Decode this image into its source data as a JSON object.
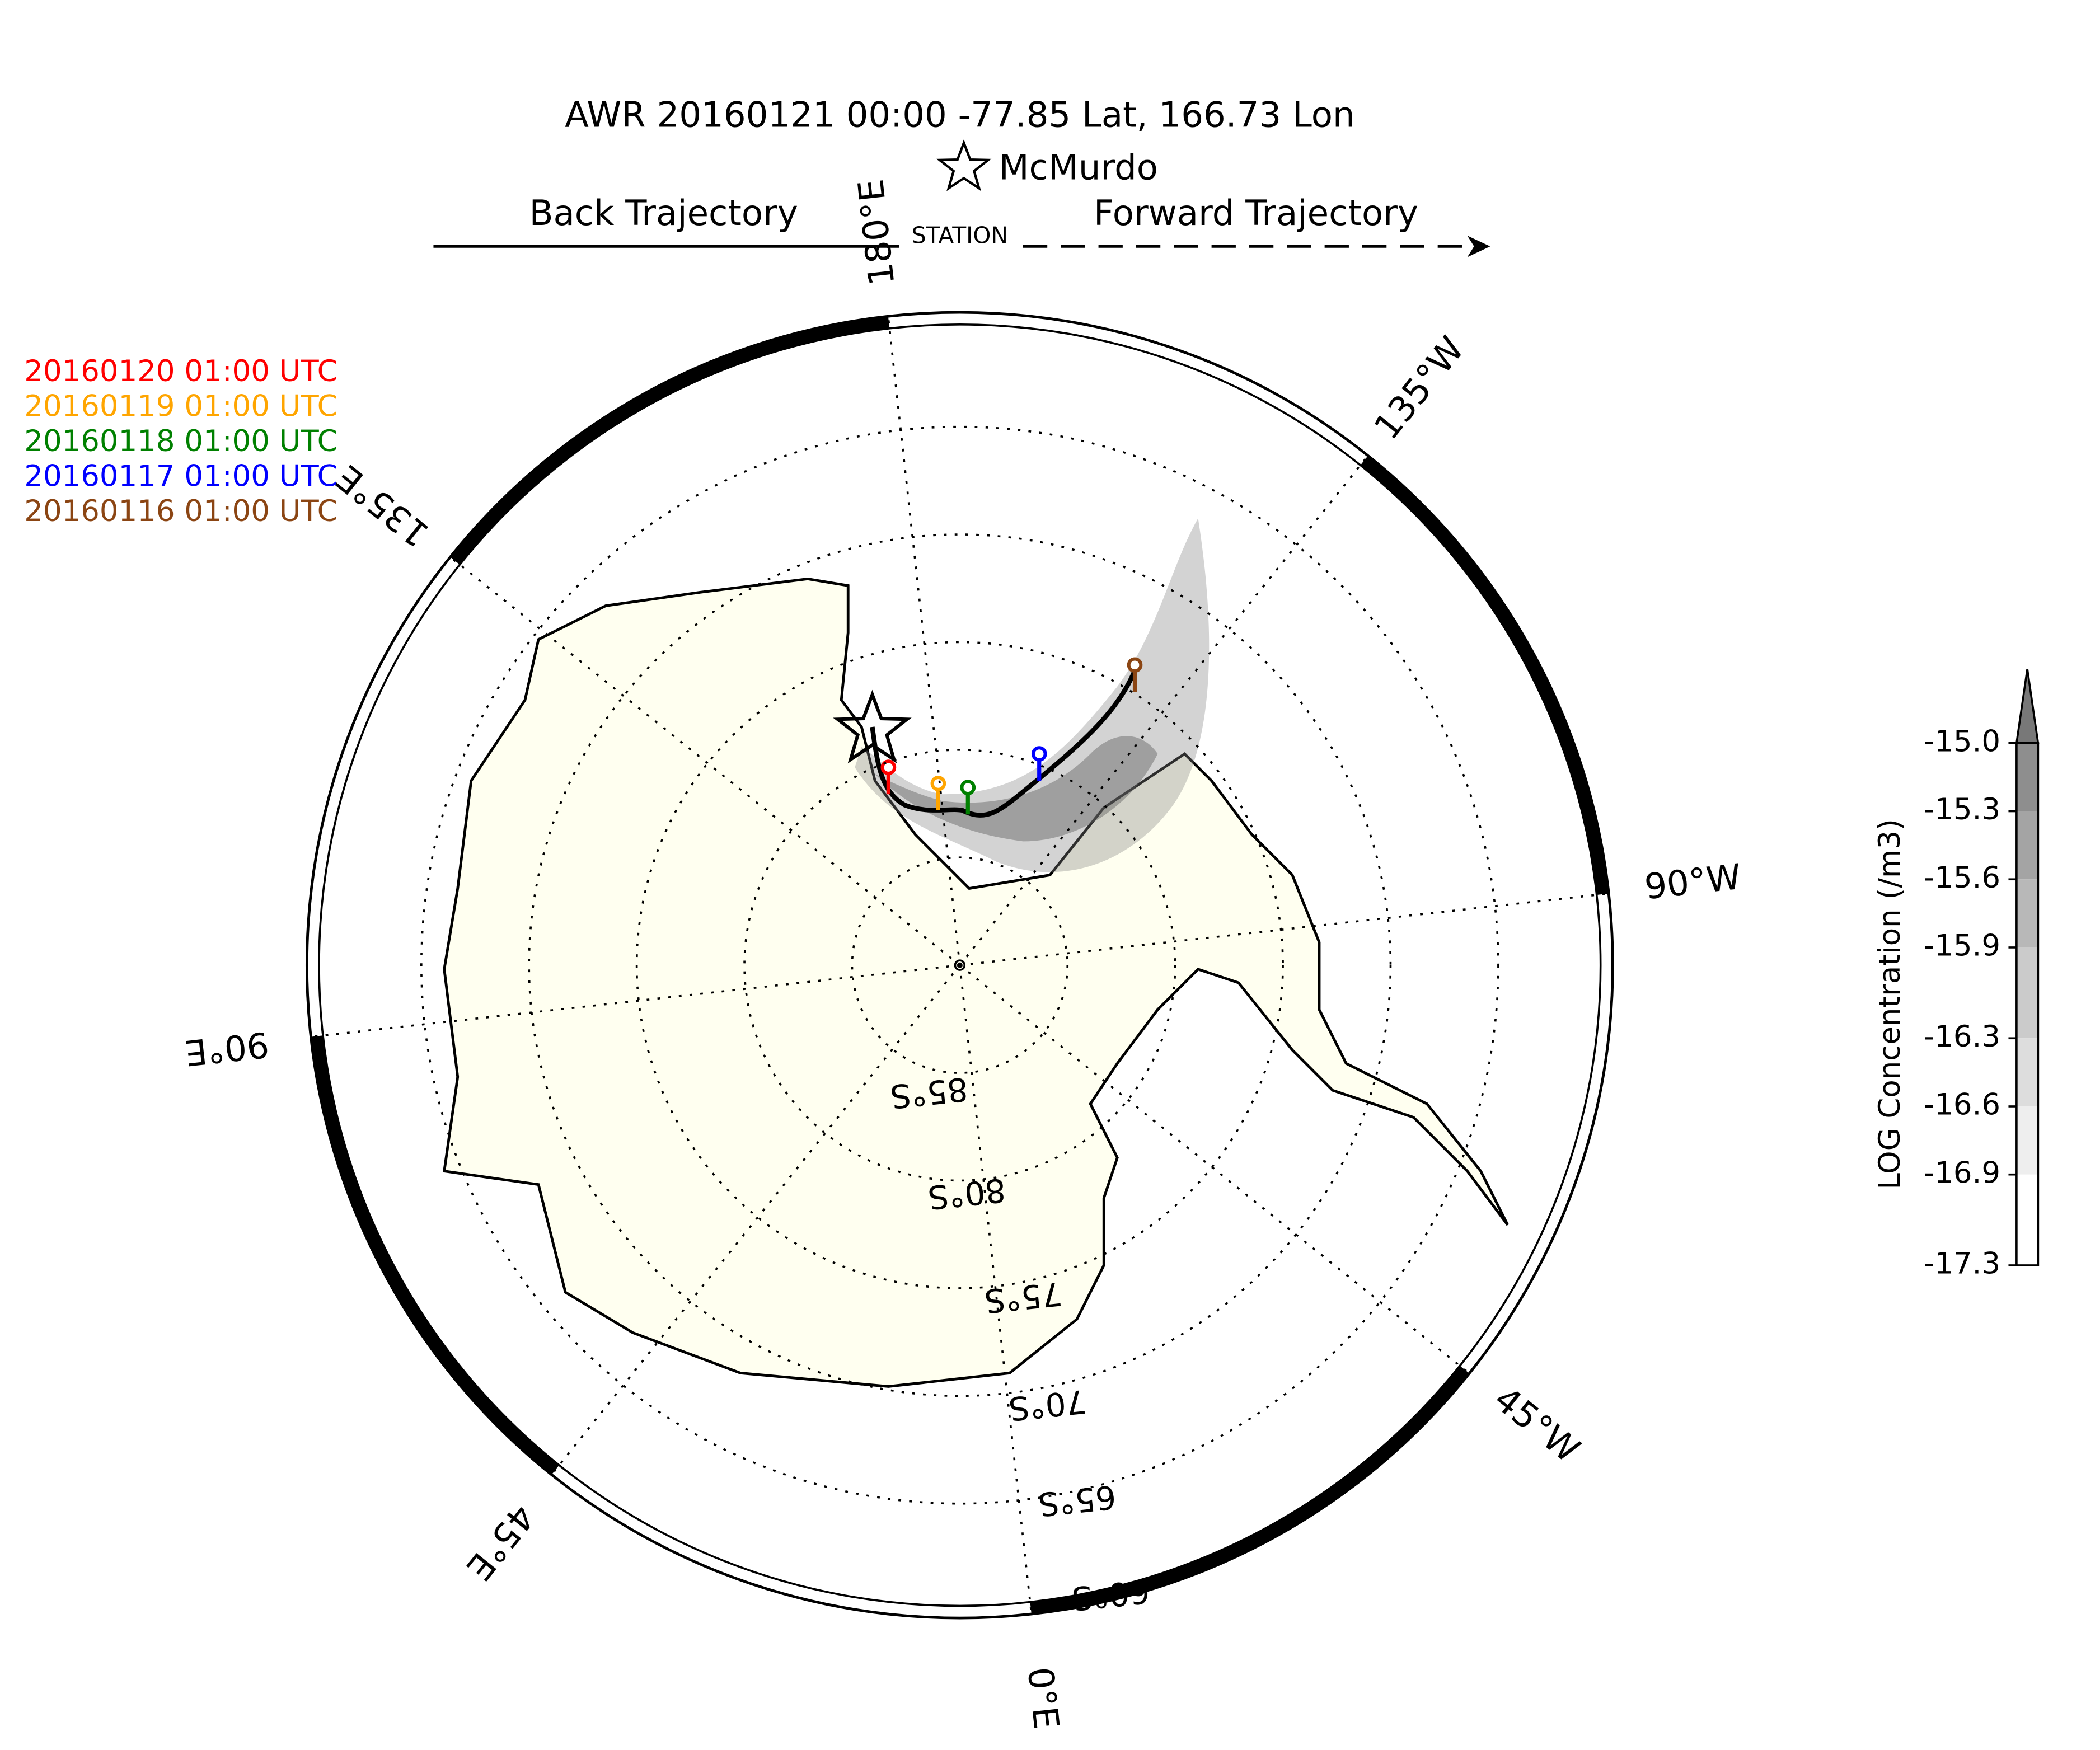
{
  "title": "AWR 20160121 00:00  -77.85 Lat,  166.73 Lon",
  "station": {
    "name": "McMurdo",
    "label": "STATION"
  },
  "back_label": "Back Trajectory",
  "forward_label": "Forward Trajectory",
  "legend": [
    {
      "label": "20160120 01:00 UTC",
      "color": "#ff0000"
    },
    {
      "label": "20160119 01:00 UTC",
      "color": "#ffa500"
    },
    {
      "label": "20160118 01:00 UTC",
      "color": "#008000"
    },
    {
      "label": "20160117 01:00 UTC",
      "color": "#0000ff"
    },
    {
      "label": "20160116 01:00 UTC",
      "color": "#8b4513"
    }
  ],
  "graticule": {
    "meridians": [
      "180°E",
      "135°W",
      "90°W",
      "45°W",
      "0°E",
      "45°E",
      "90°E",
      "135°E"
    ],
    "parallels": [
      "85°S",
      "80°S",
      "75°S",
      "70°S",
      "65°S",
      "60°S"
    ]
  },
  "colorbar": {
    "label": "LOG Concentration (/m3)",
    "lim": [
      -17.3,
      -15
    ],
    "ticks": [
      {
        "value": -15,
        "label": "-15.0"
      },
      -15.3,
      -15.6,
      -15.9,
      -16.3,
      -16.6,
      -16.9,
      -17.3
    ],
    "colors": [
      "#787878",
      "#8e8e8e",
      "#a4a4a4",
      "#b8b8b8",
      "#cbcbcb",
      "#dddddd",
      "#eeeeee",
      "#ffffff"
    ]
  }
}
